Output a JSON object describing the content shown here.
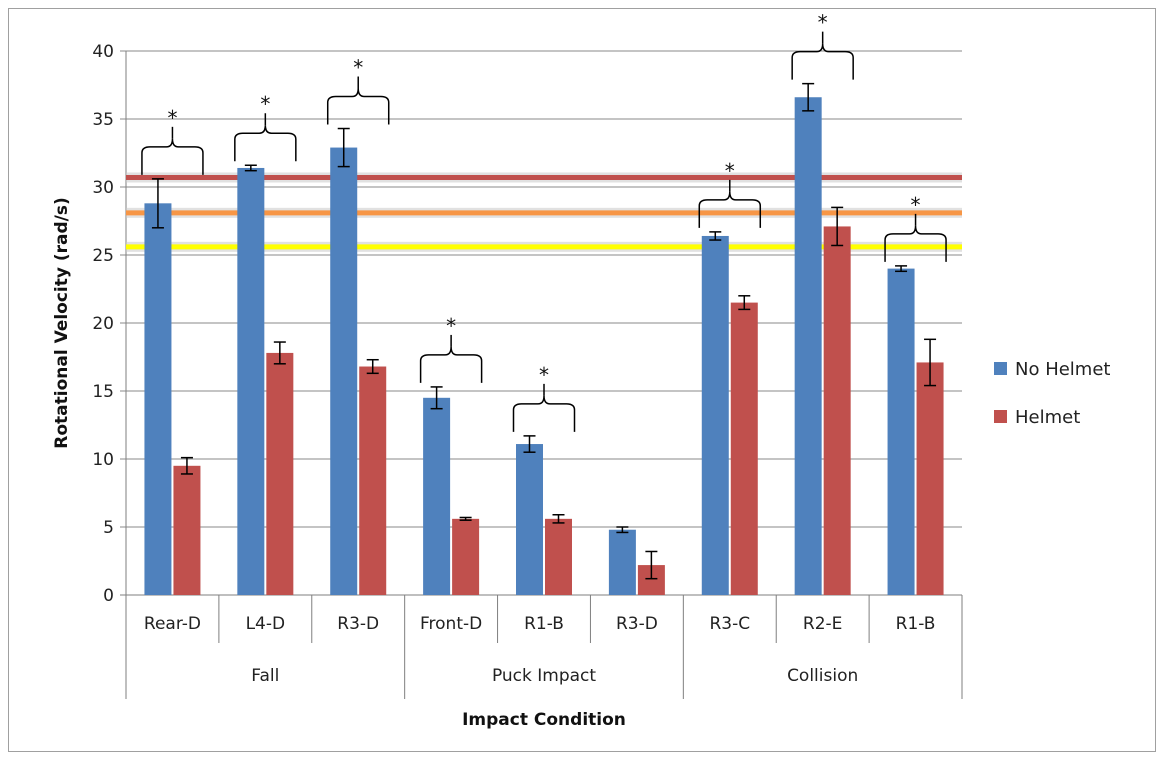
{
  "chart_data": {
    "type": "bar",
    "ylabel": "Rotational Velocity (rad/s)",
    "xlabel": "Impact Condition",
    "ylim": [
      0,
      40
    ],
    "yticks": [
      0,
      5,
      10,
      15,
      20,
      25,
      30,
      35,
      40
    ],
    "grid": true,
    "legend_position": "right",
    "groups": [
      {
        "label": "Fall",
        "categories": [
          "Rear-D",
          "L4-D",
          "R3-D"
        ]
      },
      {
        "label": "Puck Impact",
        "categories": [
          "Front-D",
          "R1-B",
          "R3-D"
        ]
      },
      {
        "label": "Collision",
        "categories": [
          "R3-C",
          "R2-E",
          "R1-B"
        ]
      }
    ],
    "categories": [
      "Rear-D",
      "L4-D",
      "R3-D",
      "Front-D",
      "R1-B",
      "R3-D",
      "R3-C",
      "R2-E",
      "R1-B"
    ],
    "series": [
      {
        "name": "No Helmet",
        "color": "#4f81bd",
        "values": [
          28.8,
          31.4,
          32.9,
          14.5,
          11.1,
          4.8,
          26.4,
          36.6,
          24.0
        ],
        "errors": [
          1.8,
          0.2,
          1.4,
          0.8,
          0.6,
          0.2,
          0.3,
          1.0,
          0.2
        ]
      },
      {
        "name": "Helmet",
        "color": "#c0504d",
        "values": [
          9.5,
          17.8,
          16.8,
          5.6,
          5.6,
          2.2,
          21.5,
          27.1,
          17.1
        ],
        "errors": [
          0.6,
          0.8,
          0.5,
          0.1,
          0.3,
          1.0,
          0.5,
          1.4,
          1.7
        ]
      }
    ],
    "significance_marker": "*",
    "significant_categories": [
      0,
      1,
      2,
      3,
      4,
      6,
      7,
      8
    ],
    "reference_lines": [
      {
        "value": 30.7,
        "color": "#c0504d"
      },
      {
        "value": 28.1,
        "color": "#f79646"
      },
      {
        "value": 25.6,
        "color": "#ffff00"
      }
    ]
  }
}
